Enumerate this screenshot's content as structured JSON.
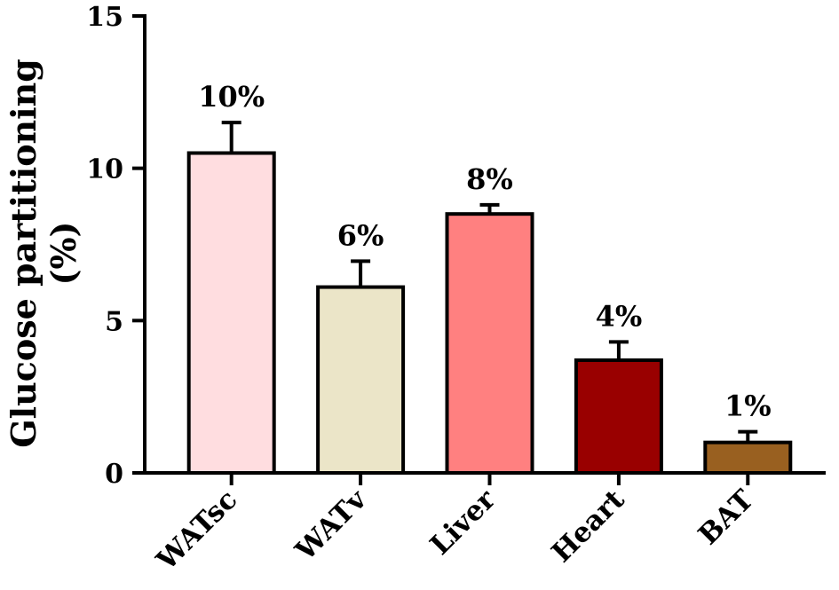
{
  "chart_data": {
    "type": "bar",
    "categories": [
      "WATsc",
      "WATv",
      "Liver",
      "Heart",
      "BAT"
    ],
    "values": [
      10.5,
      6.1,
      8.5,
      3.7,
      1.0
    ],
    "errors": [
      1.0,
      0.85,
      0.3,
      0.6,
      0.35
    ],
    "data_labels": [
      "10%",
      "6%",
      "8%",
      "4%",
      "1%"
    ],
    "colors": [
      "#FFDDE0",
      "#EBE5C8",
      "#FF8080",
      "#990000",
      "#996020"
    ],
    "title": "",
    "xlabel": "",
    "ylabel_lines": [
      "Glucose partitioning",
      "(%)"
    ],
    "ylim": [
      0,
      15
    ],
    "yticks": [
      0,
      5,
      10,
      15
    ],
    "ytick_labels": [
      "0",
      "5",
      "10",
      "15"
    ],
    "grid": false,
    "legend": "none"
  }
}
